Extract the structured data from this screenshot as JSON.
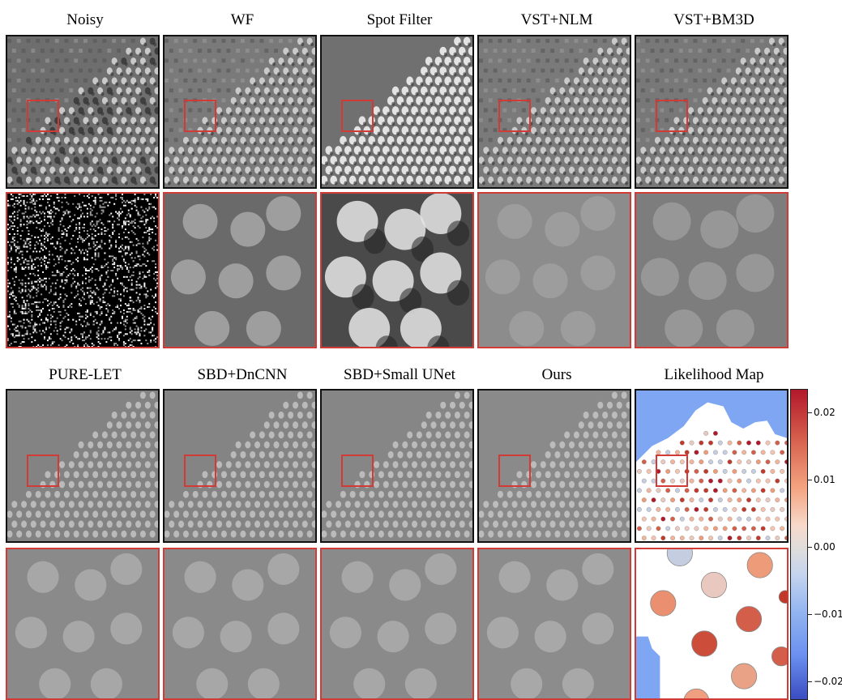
{
  "figure": {
    "row1_titles": [
      "Noisy",
      "WF",
      "Spot Filter",
      "VST+NLM",
      "VST+BM3D"
    ],
    "row2_titles": [
      "PURE-LET",
      "SBD+DnCNN",
      "SBD+Small UNet",
      "Ours",
      "Likelihood Map"
    ],
    "colorbar": {
      "ticks": [
        "0.02",
        "0.01",
        "0.00",
        "−0.01",
        "−0.02"
      ],
      "colormap": "coolwarm",
      "colors": {
        "max": "#b2182b",
        "mid": "#dddddd",
        "min": "#3b4cc0"
      }
    },
    "accent_color": "#d23a36"
  }
}
